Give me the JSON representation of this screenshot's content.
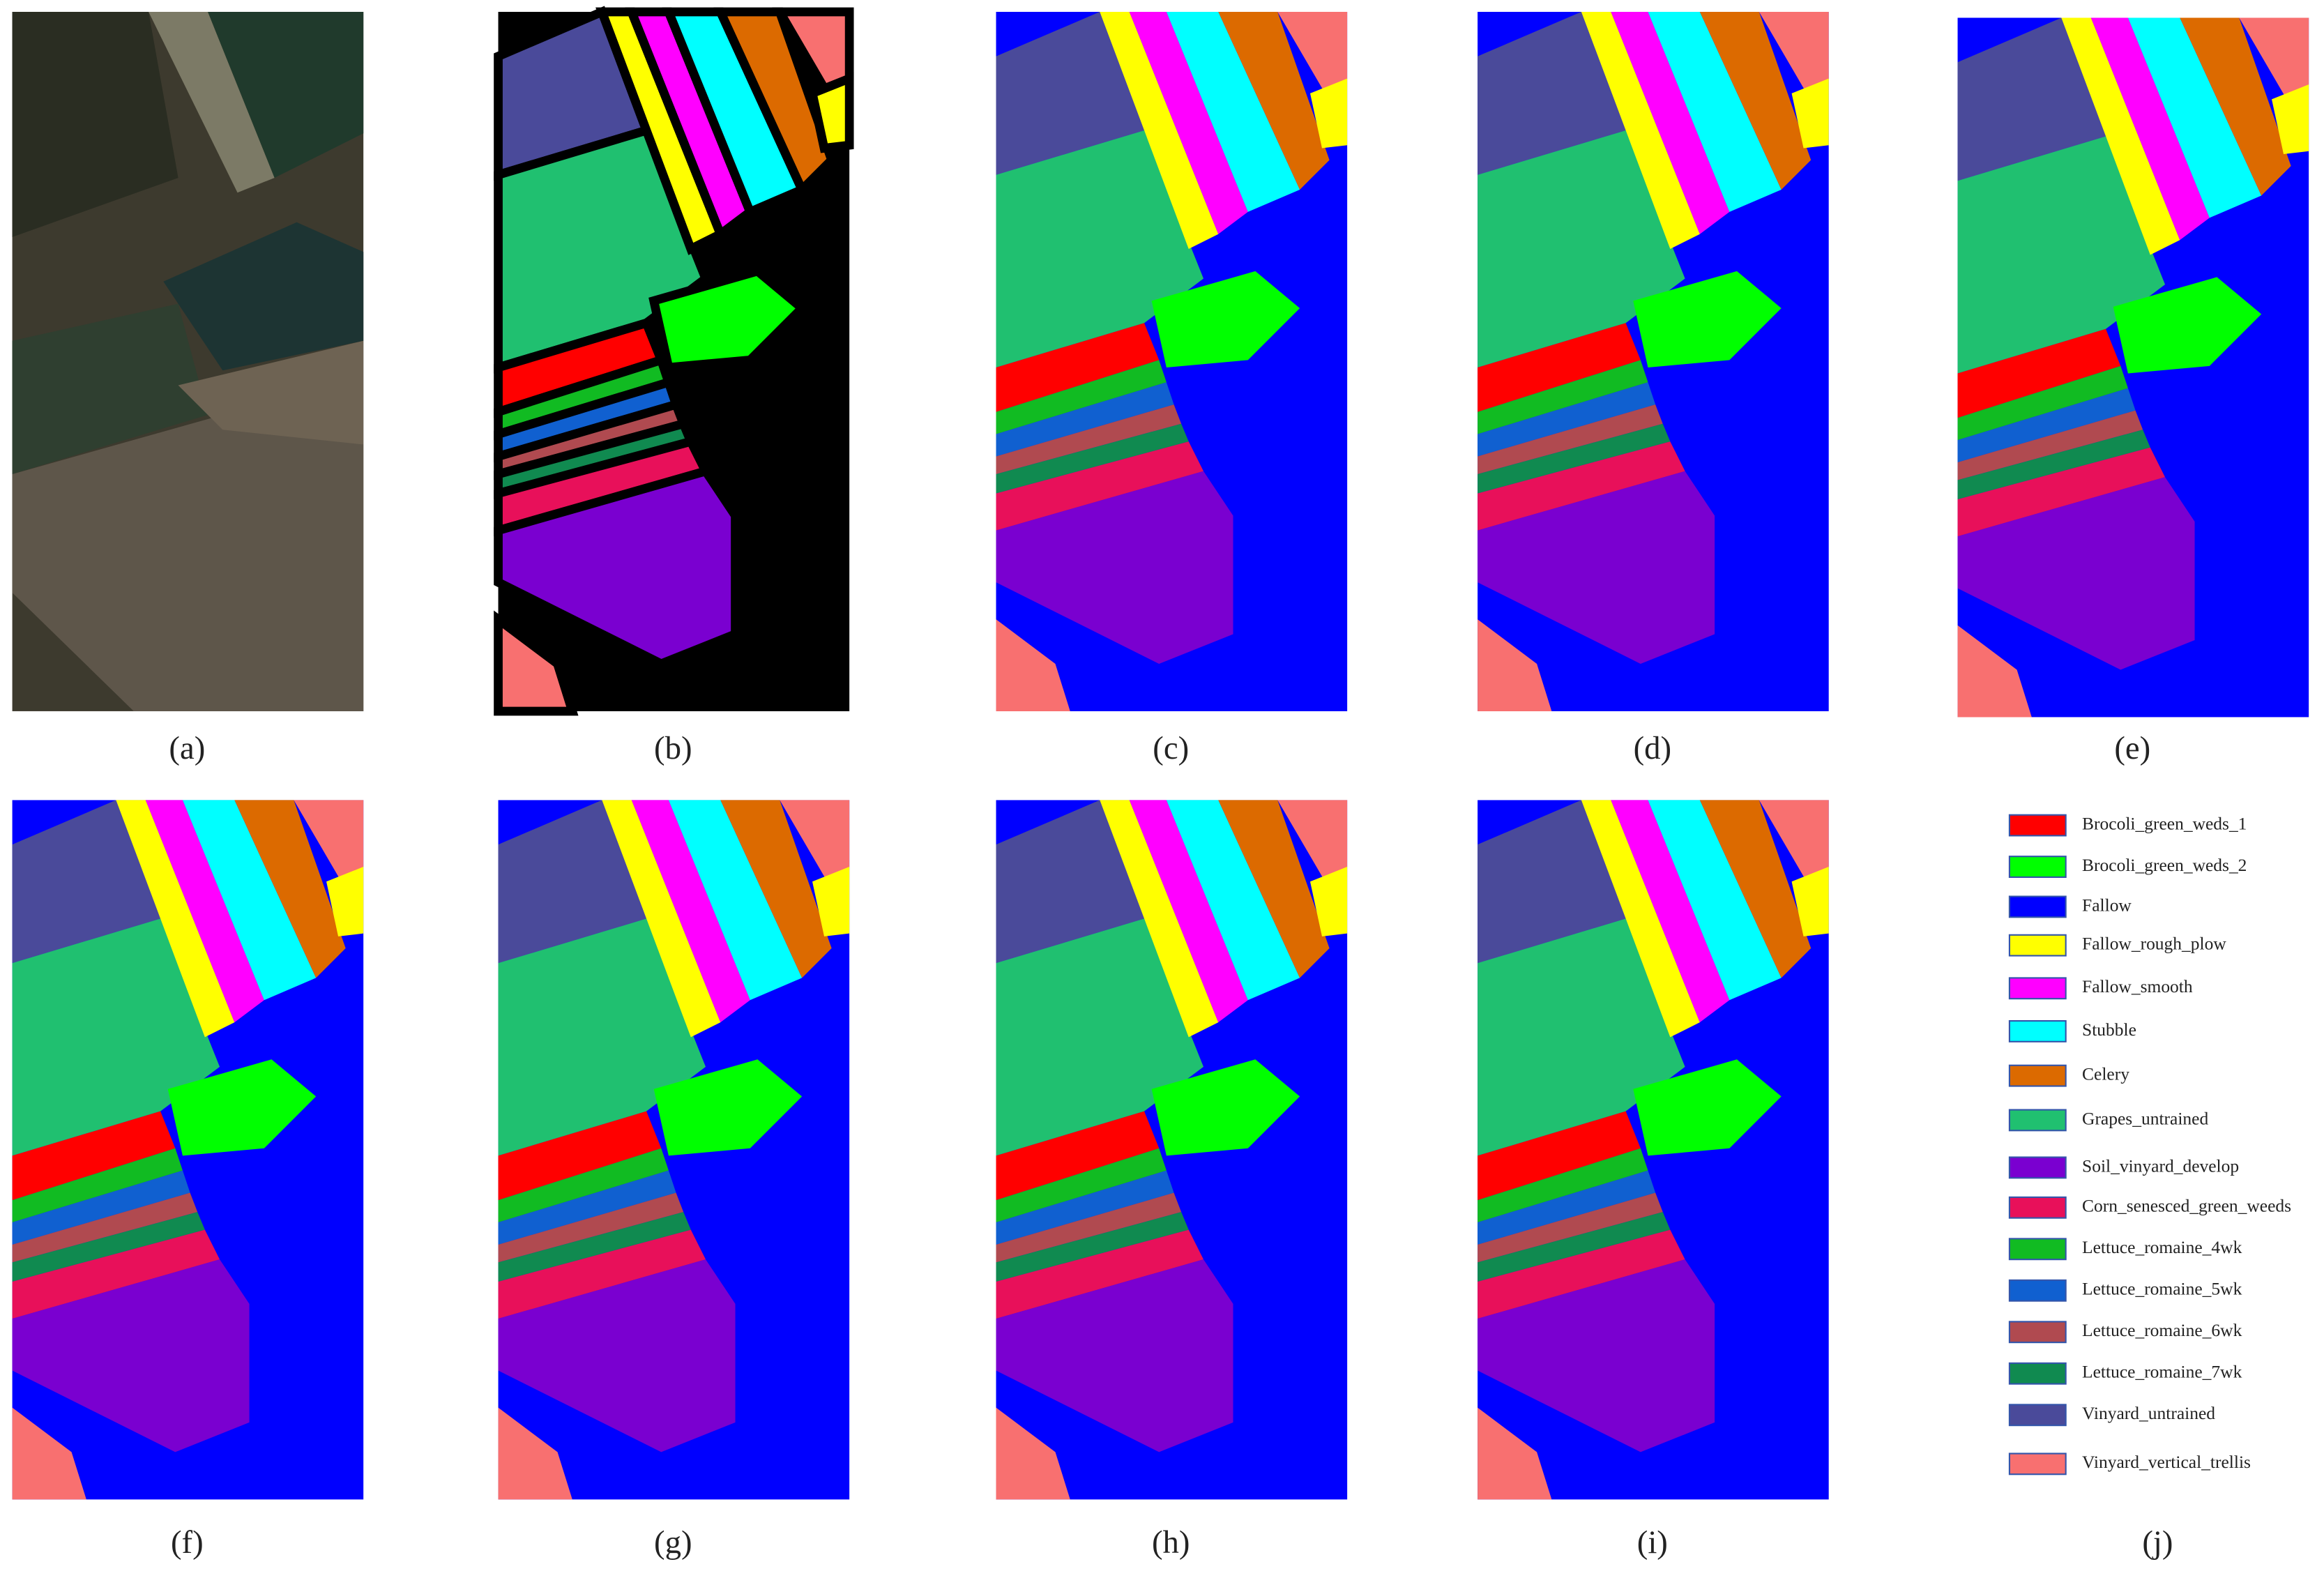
{
  "captions": [
    "(a)",
    "(b)",
    "(c)",
    "(d)",
    "(e)",
    "(f)",
    "(g)",
    "(h)",
    "(i)",
    "(j)"
  ],
  "legend": {
    "items": [
      {
        "label": "Brocoli_green_weds_1",
        "color": "#ff0000"
      },
      {
        "label": "Brocoli_green_weds_2",
        "color": "#00ff00"
      },
      {
        "label": "Fallow",
        "color": "#0000ff"
      },
      {
        "label": "Fallow_rough_plow",
        "color": "#ffff00"
      },
      {
        "label": "Fallow_smooth",
        "color": "#ff00ff"
      },
      {
        "label": "Stubble",
        "color": "#00ffff"
      },
      {
        "label": "Celery",
        "color": "#dc6a00"
      },
      {
        "label": "Grapes_untrained",
        "color": "#20c070"
      },
      {
        "label": "Soil_vinyard_develop",
        "color": "#7a00d0"
      },
      {
        "label": "Corn_senesced_green_weeds",
        "color": "#e8105a"
      },
      {
        "label": "Lettuce_romaine_4wk",
        "color": "#11bb22"
      },
      {
        "label": "Lettuce_romaine_5wk",
        "color": "#1060d0"
      },
      {
        "label": "Lettuce_romaine_6wk",
        "color": "#b04a50"
      },
      {
        "label": "Lettuce_romaine_7wk",
        "color": "#108a50"
      },
      {
        "label": "Vinyard_untrained",
        "color": "#4a4a9a"
      },
      {
        "label": "Vinyard_vertical_trellis",
        "color": "#f87070"
      }
    ]
  }
}
